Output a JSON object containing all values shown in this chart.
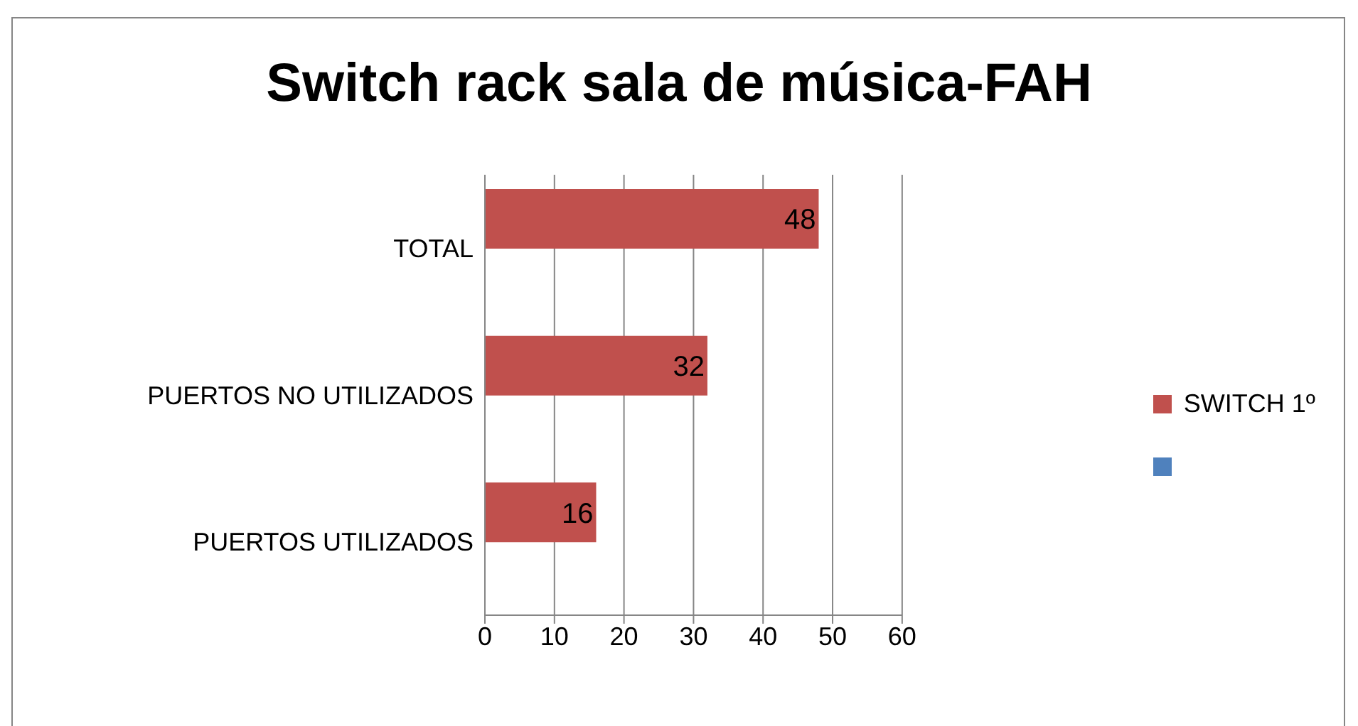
{
  "chart_data": {
    "type": "bar",
    "orientation": "horizontal",
    "title": "Switch rack sala de música-FAH",
    "categories": [
      "TOTAL",
      "PUERTOS NO UTILIZADOS",
      "PUERTOS UTILIZADOS"
    ],
    "series": [
      {
        "name": "SWITCH 1º",
        "color": "#c0504d",
        "values": [
          48,
          32,
          16
        ]
      },
      {
        "color": "#4f81bd",
        "values": [
          null,
          null,
          null
        ]
      }
    ],
    "xlim": [
      0,
      60
    ],
    "xticks": [
      0,
      10,
      20,
      30,
      40,
      50,
      60
    ],
    "grid": "x",
    "legend": "right",
    "data_labels": true
  }
}
